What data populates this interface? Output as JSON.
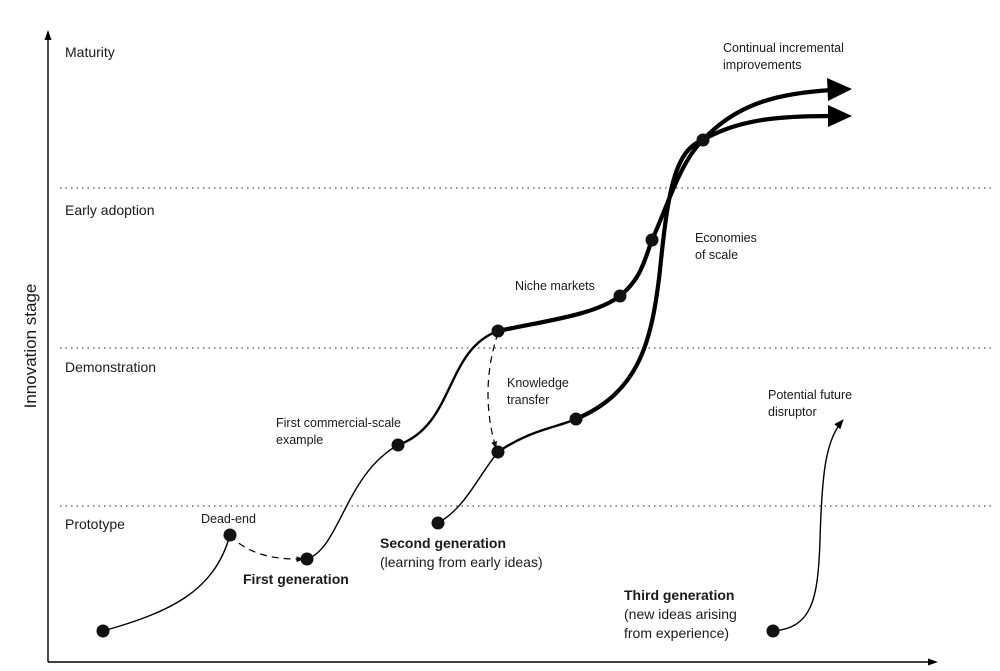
{
  "y_axis_label": "Innovation stage",
  "stages": {
    "maturity": "Maturity",
    "early_adoption": "Early adoption",
    "demonstration": "Demonstration",
    "prototype": "Prototype"
  },
  "annotations": {
    "dead_end": "Dead-end",
    "first_commercial_1": "First commercial-scale",
    "first_commercial_2": "example",
    "niche_markets": "Niche markets",
    "knowledge_1": "Knowledge",
    "knowledge_2": "transfer",
    "economies_1": "Economies",
    "economies_2": "of scale",
    "continual_1": "Continual incremental",
    "continual_2": "improvements",
    "future_1": "Potential future",
    "future_2": "disruptor"
  },
  "generations": {
    "first_title": "First generation",
    "second_title": "Second generation",
    "second_sub": "(learning from early ideas)",
    "third_title": "Third generation",
    "third_sub_1": "(new ideas arising",
    "third_sub_2": "from experience)"
  }
}
